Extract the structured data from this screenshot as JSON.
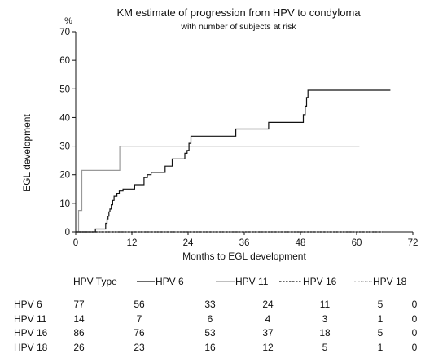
{
  "chart_data": {
    "type": "line",
    "title": "KM estimate of progression from HPV to condyloma",
    "subtitle": "with number of subjects at risk",
    "xlabel": "Months to EGL development",
    "ylabel": "EGL development",
    "y_unit": "%",
    "xlim": [
      0,
      72
    ],
    "ylim": [
      0,
      70
    ],
    "x_ticks": [
      0,
      12,
      24,
      36,
      48,
      60,
      72
    ],
    "y_ticks": [
      0,
      10,
      20,
      30,
      40,
      50,
      60,
      70
    ],
    "grid": false,
    "legend_position": "bottom",
    "legend_title": "HPV Type",
    "series": [
      {
        "name": "HPV 6",
        "color": "#111111",
        "dash": "solid",
        "x": [
          0,
          4,
          4.2,
          6.2,
          6.4,
          6.7,
          6.9,
          7.1,
          7.3,
          7.6,
          7.9,
          8.2,
          8.8,
          9.3,
          10.1,
          12,
          12.6,
          14,
          14.6,
          15.3,
          16.1,
          18.2,
          19.1,
          20.3,
          20.6,
          22.2,
          23.3,
          23.8,
          24.2,
          24.6,
          33.4,
          34.2,
          40.4,
          41.2,
          48.2,
          48.6,
          49.0,
          49.3,
          49.6,
          67.2
        ],
        "y": [
          0,
          0,
          1,
          1,
          3,
          4.5,
          5.5,
          7,
          8,
          9.5,
          11,
          12.5,
          13.5,
          14.3,
          15,
          15,
          16.5,
          16.5,
          19,
          20,
          20.8,
          20.8,
          23,
          23,
          25.5,
          25.5,
          27.5,
          28.5,
          31,
          33.5,
          33.5,
          36,
          36,
          38.3,
          38.3,
          41,
          44,
          47,
          49.5,
          49.5
        ]
      },
      {
        "name": "HPV 11",
        "color": "#999999",
        "dash": "solid",
        "x": [
          0,
          0.6,
          1.3,
          9.2,
          9.4,
          60.6
        ],
        "y": [
          0,
          7.5,
          21.5,
          21.5,
          30,
          30
        ]
      },
      {
        "name": "HPV 16",
        "color": "#111111",
        "dash": "dashed",
        "x": [
          0,
          65.5
        ],
        "y": [
          0,
          0
        ]
      },
      {
        "name": "HPV 18",
        "color": "#888888",
        "dash": "dotted",
        "x": [
          0,
          65.5
        ],
        "y": [
          0,
          0
        ]
      }
    ],
    "risk_table": {
      "rows": [
        {
          "label": "HPV  6",
          "values": [
            "77",
            "56",
            "33",
            "24",
            "11",
            "5",
            "0"
          ]
        },
        {
          "label": "HPV 11",
          "values": [
            "14",
            "7",
            "6",
            "4",
            "3",
            "1",
            "0"
          ]
        },
        {
          "label": "HPV 16",
          "values": [
            "86",
            "76",
            "53",
            "37",
            "18",
            "5",
            "0"
          ]
        },
        {
          "label": "HPV 18",
          "values": [
            "26",
            "23",
            "16",
            "12",
            "5",
            "1",
            "0"
          ]
        }
      ]
    }
  }
}
